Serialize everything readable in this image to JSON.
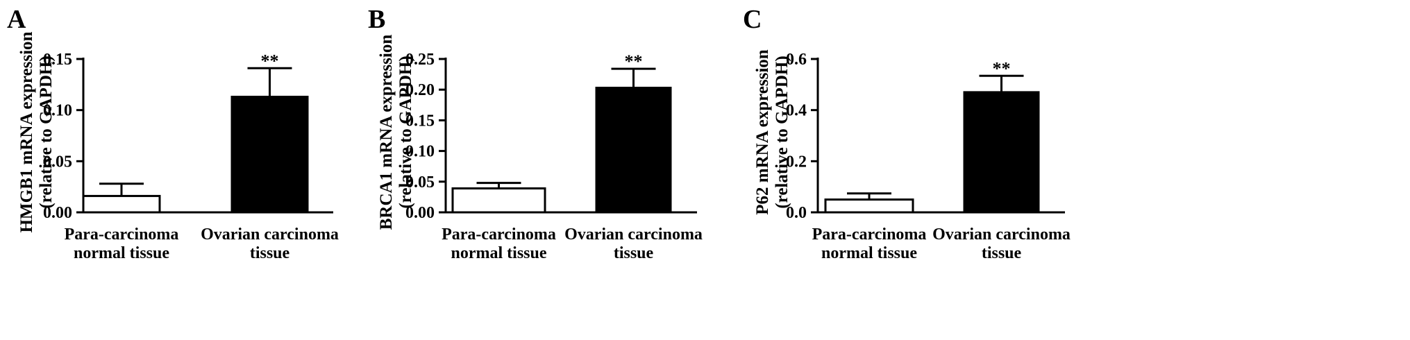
{
  "chart_data": [
    {
      "type": "bar",
      "panel": "A",
      "ylabel": [
        "HMGB1 mRNA expression",
        "(relative to GAPDH)"
      ],
      "categories": [
        [
          "Para-carcinoma",
          "normal tissue"
        ],
        [
          "Ovarian carcinoma",
          "tissue"
        ]
      ],
      "values": [
        0.016,
        0.113
      ],
      "errors": [
        0.012,
        0.028
      ],
      "significance": [
        "",
        "**"
      ],
      "ylim": [
        0,
        0.15
      ],
      "yticks": [
        0.0,
        0.05,
        0.1,
        0.15
      ],
      "ytick_labels": [
        "0.00",
        "0.05",
        "0.10",
        "0.15"
      ],
      "bar_fills": [
        "#ffffff",
        "#000000"
      ]
    },
    {
      "type": "bar",
      "panel": "B",
      "ylabel": [
        "BRCA1 mRNA expression",
        "(relative to GAPDH)"
      ],
      "categories": [
        [
          "Para-carcinoma",
          "normal tissue"
        ],
        [
          "Ovarian carcinoma",
          "tissue"
        ]
      ],
      "values": [
        0.039,
        0.203
      ],
      "errors": [
        0.009,
        0.031
      ],
      "significance": [
        "",
        "**"
      ],
      "ylim": [
        0,
        0.25
      ],
      "yticks": [
        0.0,
        0.05,
        0.1,
        0.15,
        0.2,
        0.25
      ],
      "ytick_labels": [
        "0.00",
        "0.05",
        "0.10",
        "0.15",
        "0.20",
        "0.25"
      ],
      "bar_fills": [
        "#ffffff",
        "#000000"
      ]
    },
    {
      "type": "bar",
      "panel": "C",
      "ylabel": [
        "P62 mRNA expression",
        "(relative to GAPDH)"
      ],
      "categories": [
        [
          "Para-carcinoma",
          "normal tissue"
        ],
        [
          "Ovarian carcinoma",
          "tissue"
        ]
      ],
      "values": [
        0.05,
        0.47
      ],
      "errors": [
        0.024,
        0.064
      ],
      "significance": [
        "",
        "**"
      ],
      "ylim": [
        0,
        0.6
      ],
      "yticks": [
        0.0,
        0.2,
        0.4,
        0.6
      ],
      "ytick_labels": [
        "0.0",
        "0.2",
        "0.4",
        "0.6"
      ],
      "bar_fills": [
        "#ffffff",
        "#000000"
      ]
    }
  ]
}
